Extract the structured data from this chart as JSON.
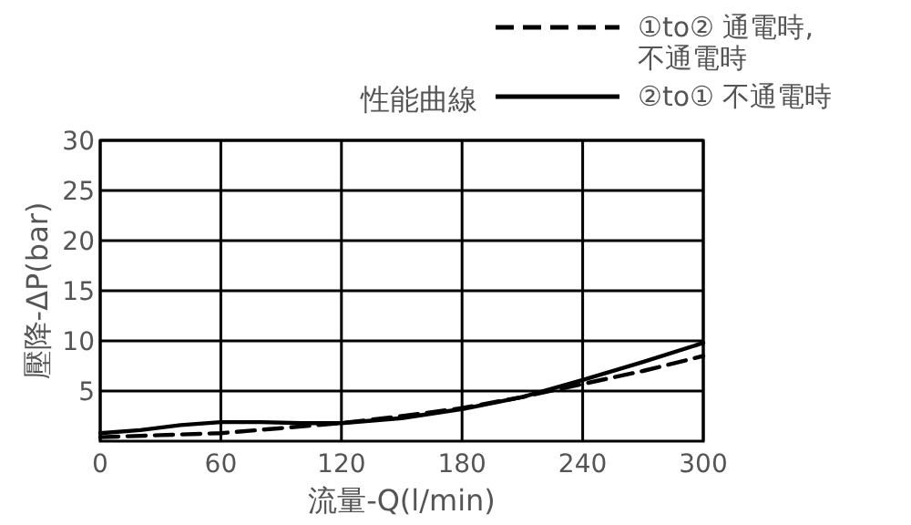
{
  "chart_data": {
    "type": "line",
    "title": "性能曲線",
    "xlabel": "流量-Q(l/min)",
    "ylabel": "壓降-ΔP(bar)",
    "xlim": [
      0,
      300
    ],
    "ylim": [
      0,
      30
    ],
    "xticks": [
      0,
      60,
      120,
      180,
      240,
      300
    ],
    "yticks": [
      5,
      10,
      15,
      20,
      25,
      30
    ],
    "grid": true,
    "legend": "top right",
    "series": [
      {
        "name": "①to② 通電時, 不通電時",
        "color": "#000000",
        "line_style": "dashed",
        "x": [
          0,
          30,
          60,
          90,
          120,
          150,
          180,
          210,
          240,
          270,
          300
        ],
        "values": [
          0.4,
          0.6,
          0.8,
          1.3,
          1.8,
          2.5,
          3.3,
          4.4,
          5.7,
          7.0,
          8.5
        ]
      },
      {
        "name": "②to① 不通電時",
        "color": "#000000",
        "line_style": "solid",
        "x": [
          0,
          20,
          40,
          60,
          80,
          100,
          120,
          150,
          180,
          210,
          240,
          270,
          300
        ],
        "values": [
          0.8,
          1.1,
          1.6,
          1.9,
          1.9,
          1.8,
          1.8,
          2.3,
          3.2,
          4.4,
          6.1,
          7.9,
          9.8
        ]
      }
    ]
  }
}
